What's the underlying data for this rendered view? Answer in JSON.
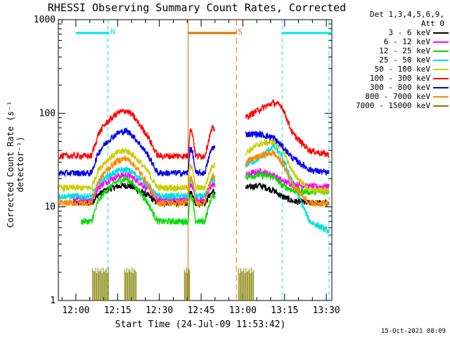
{
  "page": {
    "title": "RHESSI Observing Summary Count Rates, Corrected",
    "timestamp": "15-Oct-2021 08:09"
  },
  "legend": {
    "header_line1": "Det 1,3,4,5,6,9,",
    "header_line2": "Att 0"
  },
  "colors": {
    "axis": "#000000",
    "night": "#00e5e5",
    "saa": "#e07000",
    "flag": "#808000"
  },
  "chart_data": {
    "type": "line",
    "title": "RHESSI Observing Summary Count Rates, Corrected",
    "xlabel": "Start Time (24-Jul-09 11:53:42)",
    "ylabel": "Corrected Count Rate (s⁻¹ detector⁻¹)",
    "yscale": "log",
    "ylim": [
      1,
      1000
    ],
    "xlim_minutes_after_1200": [
      -6.3,
      92
    ],
    "x_ticks": [
      {
        "t": 0,
        "label": "12:00"
      },
      {
        "t": 15,
        "label": "12:15"
      },
      {
        "t": 30,
        "label": "12:30"
      },
      {
        "t": 45,
        "label": "12:45"
      },
      {
        "t": 60,
        "label": "13:00"
      },
      {
        "t": 75,
        "label": "13:15"
      },
      {
        "t": 90,
        "label": "13:30"
      }
    ],
    "y_ticks": [
      {
        "v": 1,
        "label": "1"
      },
      {
        "v": 10,
        "label": "10"
      },
      {
        "v": 100,
        "label": "100"
      },
      {
        "v": 1000,
        "label": "1000"
      }
    ],
    "shape_t": [
      6,
      7,
      8,
      10,
      12,
      15,
      18,
      20,
      23,
      26,
      28,
      30,
      33,
      35,
      38,
      39,
      40,
      41,
      42,
      43,
      44,
      45,
      46,
      47,
      48,
      49
    ],
    "shape_f": [
      0.66,
      0.72,
      0.8,
      0.87,
      0.92,
      0.98,
      1.0,
      0.97,
      0.88,
      0.78,
      0.68,
      0.6,
      0.5,
      0.46,
      0.44,
      0.45,
      0.5,
      0.85,
      0.8,
      0.62,
      0.56,
      0.55,
      0.6,
      0.68,
      0.78,
      0.85
    ],
    "series": [
      {
        "name": "3 - 6 keV",
        "color": "#000000",
        "pre": 11,
        "peak": 17,
        "pre_start": -1,
        "post": [
          16,
          17,
          15,
          13,
          11.5,
          11,
          11
        ]
      },
      {
        "name": "6 - 12 keV",
        "color": "#ff00ff",
        "pre": 12,
        "peak": 22,
        "pre_start": -1,
        "post": [
          22,
          24,
          22,
          19,
          17.5,
          16.5,
          16.5
        ]
      },
      {
        "name": "12 - 25 keV",
        "color": "#00dd00",
        "pre": 7,
        "peak": 20,
        "pre_start": 2,
        "post": [
          21,
          22,
          21,
          17,
          15,
          14.5,
          14.5
        ]
      },
      {
        "name": "25 - 50 keV",
        "color": "#00dddd",
        "pre": 13,
        "peak": 25,
        "pre_start": -6,
        "post": [
          28,
          33,
          45,
          35,
          18,
          7,
          5.5
        ]
      },
      {
        "name": "50 - 100 keV",
        "color": "#cccc00",
        "pre": 16,
        "peak": 40,
        "pre_start": -6,
        "post": [
          38,
          47,
          50,
          43,
          23,
          15,
          15
        ]
      },
      {
        "name": "100 - 300 keV",
        "color": "#ff0000",
        "pre": 35,
        "peak": 107,
        "pre_start": -6,
        "post": [
          90,
          110,
          130,
          120,
          60,
          40,
          36
        ]
      },
      {
        "name": "300 - 800 keV",
        "color": "#0000ee",
        "pre": 23,
        "peak": 65,
        "pre_start": -6,
        "post": [
          60,
          60,
          55,
          45,
          33,
          25,
          23
        ]
      },
      {
        "name": "800 - 7000 keV",
        "color": "#ff8800",
        "pre": 11,
        "peak": 33,
        "pre_start": -6,
        "post": [
          30,
          35,
          38,
          30,
          17,
          11,
          11
        ]
      },
      {
        "name": "7000 - 15000 keV",
        "color": "#808000",
        "pre": 1,
        "peak": 1,
        "pre_start": -6,
        "post": [
          1,
          1,
          1,
          1,
          1,
          1,
          1
        ]
      }
    ],
    "post_t": [
      61,
      66,
      71,
      74,
      78,
      84,
      91
    ],
    "gaps_minutes": [
      [
        50,
        60.2
      ]
    ],
    "flags": [
      {
        "label": "N",
        "start": 0,
        "end": 12,
        "color": "#00e5e5"
      },
      {
        "label": "S",
        "start": 40.3,
        "end": 57.7,
        "color": "#e07000"
      },
      {
        "label": "",
        "start": 74.1,
        "end": 92,
        "color": "#00e5e5"
      }
    ],
    "night_lines_minutes": [
      11.5,
      74.1,
      91
    ],
    "saa_lines_minutes": [
      40.3,
      57.7
    ],
    "decimation_blocks": [
      [
        6,
        12
      ],
      [
        17.5,
        22
      ],
      [
        39,
        41
      ],
      [
        58.5,
        64
      ]
    ],
    "ylevel_y_at": 4
  }
}
